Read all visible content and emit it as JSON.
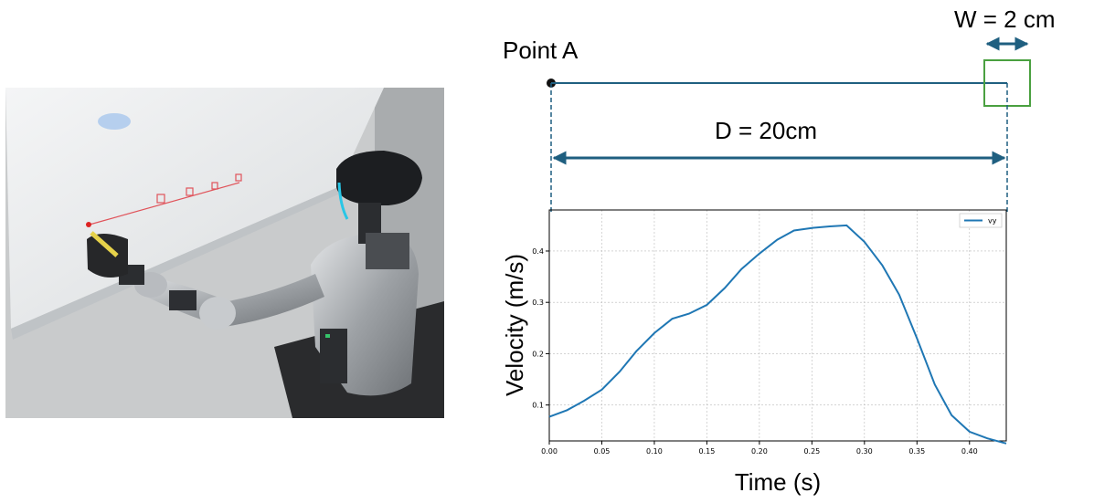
{
  "photo": {
    "description_icon": "robot-writing-on-whiteboard-photo",
    "colors": {
      "whiteboard": "#eceeef",
      "robot_body": "#b9bcc0",
      "robot_head": "#1c1e21",
      "marker_line": "#e0535a"
    }
  },
  "diagram": {
    "point_label": "Point A",
    "width_label": "W = 2 cm",
    "distance_label": "D = 20cm",
    "colors": {
      "line": "#1f5f80",
      "target": "#4aa040",
      "dot": "#111111"
    }
  },
  "chart_data": {
    "type": "line",
    "xlabel": "Time (s)",
    "ylabel": "Velocity (m/s)",
    "xlim": [
      0.0,
      0.435
    ],
    "ylim": [
      0.03,
      0.48
    ],
    "xticks": [
      0.0,
      0.05,
      0.1,
      0.15,
      0.2,
      0.25,
      0.3,
      0.35,
      0.4
    ],
    "xtick_labels": [
      "0.00",
      "0.05",
      "0.10",
      "0.15",
      "0.20",
      "0.25",
      "0.30",
      "0.35",
      "0.40"
    ],
    "yticks": [
      0.1,
      0.2,
      0.3,
      0.4
    ],
    "ytick_labels": [
      "0.1",
      "0.2",
      "0.3",
      "0.4"
    ],
    "grid": true,
    "legend_position": "top-right",
    "series": [
      {
        "name": "vy",
        "color": "#1f77b4",
        "x": [
          0.0,
          0.017,
          0.033,
          0.05,
          0.067,
          0.083,
          0.1,
          0.117,
          0.133,
          0.15,
          0.167,
          0.183,
          0.2,
          0.217,
          0.233,
          0.25,
          0.267,
          0.283,
          0.3,
          0.317,
          0.333,
          0.35,
          0.367,
          0.383,
          0.4,
          0.417,
          0.435
        ],
        "values": [
          0.077,
          0.09,
          0.108,
          0.13,
          0.165,
          0.205,
          0.24,
          0.268,
          0.278,
          0.295,
          0.328,
          0.365,
          0.395,
          0.422,
          0.44,
          0.445,
          0.448,
          0.45,
          0.418,
          0.372,
          0.315,
          0.23,
          0.14,
          0.08,
          0.048,
          0.035,
          0.025
        ]
      }
    ]
  }
}
